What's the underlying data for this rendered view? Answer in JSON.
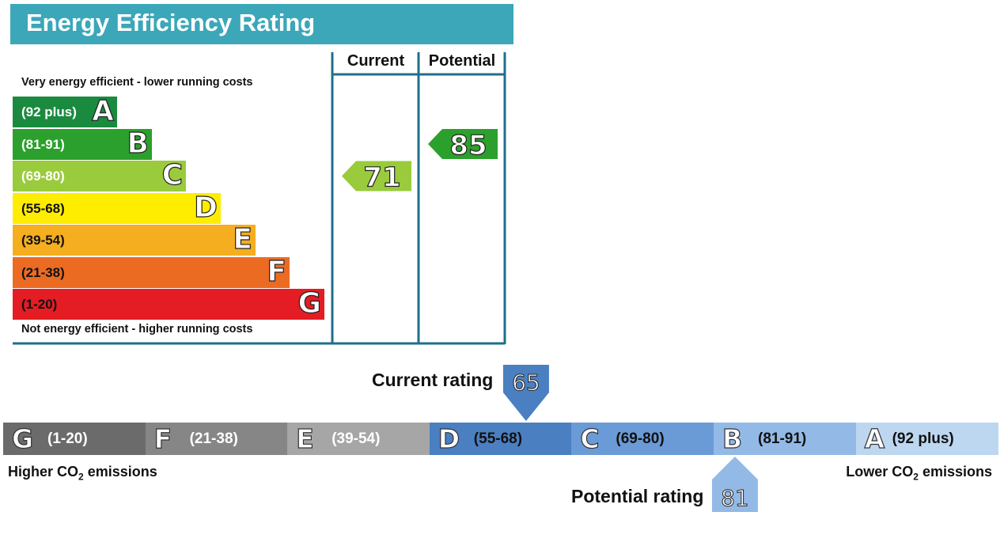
{
  "title": "Energy Efficiency Rating",
  "top_note": "Very energy efficient - lower running costs",
  "bottom_note": "Not energy efficient - higher running costs",
  "columns": {
    "current": "Current",
    "potential": "Potential"
  },
  "colors": {
    "accent": "#3ba7b9",
    "A": "#1a8a3f",
    "B": "#2ca02c",
    "C": "#9acb3c",
    "D": "#ffed00",
    "E": "#f5ae1f",
    "F": "#eb6b23",
    "G": "#e31d23"
  },
  "chart_data": [
    {
      "type": "bar",
      "title": "Energy Efficiency Rating",
      "bands": [
        {
          "letter": "A",
          "range": "(92 plus)"
        },
        {
          "letter": "B",
          "range": "(81-91)"
        },
        {
          "letter": "C",
          "range": "(69-80)"
        },
        {
          "letter": "D",
          "range": "(55-68)"
        },
        {
          "letter": "E",
          "range": "(39-54)"
        },
        {
          "letter": "F",
          "range": "(21-38)"
        },
        {
          "letter": "G",
          "range": "(1-20)"
        }
      ],
      "series": [
        {
          "name": "Current",
          "value": 71,
          "band": "C"
        },
        {
          "name": "Potential",
          "value": 85,
          "band": "B"
        }
      ]
    },
    {
      "type": "bar",
      "segments": [
        {
          "letter": "G",
          "range": "(1-20)"
        },
        {
          "letter": "F",
          "range": "(21-38)"
        },
        {
          "letter": "E",
          "range": "(39-54)"
        },
        {
          "letter": "D",
          "range": "(55-68)"
        },
        {
          "letter": "C",
          "range": "(69-80)"
        },
        {
          "letter": "B",
          "range": "(81-91)"
        },
        {
          "letter": "A",
          "range": "(92 plus)"
        }
      ],
      "segment_colors": [
        "#6b6b6b",
        "#868686",
        "#a6a6a6",
        "#4a7fc1",
        "#6b9bd6",
        "#93b9e6",
        "#bdd7f1"
      ],
      "current": {
        "label": "Current rating",
        "value": 65,
        "band": "D"
      },
      "potential": {
        "label": "Potential rating",
        "value": 81,
        "band": "B"
      },
      "left_note": {
        "text": "Higher CO",
        "sub": "2",
        "tail": " emissions"
      },
      "right_note": {
        "text": "Lower CO",
        "sub": "2",
        "tail": " emissions"
      }
    }
  ]
}
